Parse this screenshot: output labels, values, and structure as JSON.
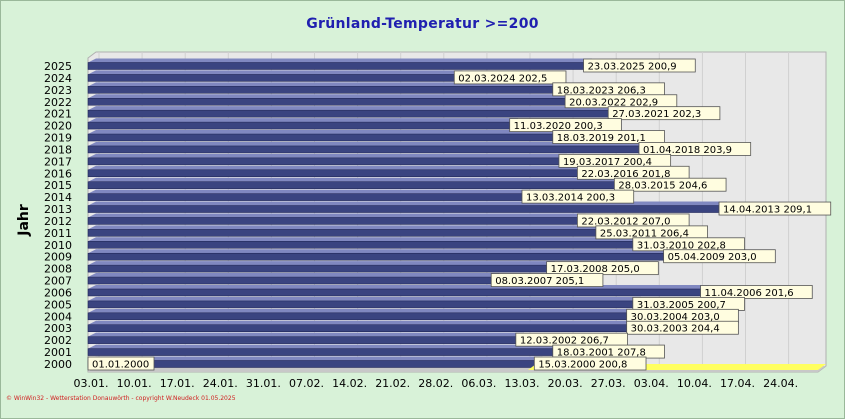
{
  "title": "Grünland-Temperatur  >=200",
  "ylabel": "Jahr",
  "credit": "© WinWin32 - Wetterstation Donauwörth - copyright W.Neudeck 01.05.2025",
  "colors": {
    "bar": "#3a4480",
    "barTop": "#8088c0",
    "labelBg": "#fffde0",
    "yellow": "#ffff60"
  },
  "chart_data": {
    "type": "bar",
    "orientation": "horizontal",
    "title": "Grünland-Temperatur  >=200",
    "ylabel": "Jahr",
    "x_ticks": [
      "03.01.",
      "10.01.",
      "17.01.",
      "24.01.",
      "31.01.",
      "07.02.",
      "14.02.",
      "21.02.",
      "28.02.",
      "06.03.",
      "13.03.",
      "20.03.",
      "27.03.",
      "03.04.",
      "10.04.",
      "17.04.",
      "24.04."
    ],
    "series": [
      {
        "year": "2025",
        "date": "23.03.2025",
        "value": "200,9"
      },
      {
        "year": "2024",
        "date": "02.03.2024",
        "value": "202,5"
      },
      {
        "year": "2023",
        "date": "18.03.2023",
        "value": "206,3"
      },
      {
        "year": "2022",
        "date": "20.03.2022",
        "value": "202,9"
      },
      {
        "year": "2021",
        "date": "27.03.2021",
        "value": "202,3"
      },
      {
        "year": "2020",
        "date": "11.03.2020",
        "value": "200,3"
      },
      {
        "year": "2019",
        "date": "18.03.2019",
        "value": "201,1"
      },
      {
        "year": "2018",
        "date": "01.04.2018",
        "value": "203,9"
      },
      {
        "year": "2017",
        "date": "19.03.2017",
        "value": "200,4"
      },
      {
        "year": "2016",
        "date": "22.03.2016",
        "value": "201,8"
      },
      {
        "year": "2015",
        "date": "28.03.2015",
        "value": "204,6"
      },
      {
        "year": "2014",
        "date": "13.03.2014",
        "value": "200,3"
      },
      {
        "year": "2013",
        "date": "14.04.2013",
        "value": "209,1"
      },
      {
        "year": "2012",
        "date": "22.03.2012",
        "value": "207,0"
      },
      {
        "year": "2011",
        "date": "25.03.2011",
        "value": "206,4"
      },
      {
        "year": "2010",
        "date": "31.03.2010",
        "value": "202,8"
      },
      {
        "year": "2009",
        "date": "05.04.2009",
        "value": "203,0"
      },
      {
        "year": "2008",
        "date": "17.03.2008",
        "value": "205,0"
      },
      {
        "year": "2007",
        "date": "08.03.2007",
        "value": "205,1"
      },
      {
        "year": "2006",
        "date": "11.04.2006",
        "value": "201,6"
      },
      {
        "year": "2005",
        "date": "31.03.2005",
        "value": "200,7"
      },
      {
        "year": "2004",
        "date": "30.03.2004",
        "value": "203,0"
      },
      {
        "year": "2003",
        "date": "30.03.2003",
        "value": "204,4"
      },
      {
        "year": "2002",
        "date": "12.03.2002",
        "value": "206,7"
      },
      {
        "year": "2001",
        "date": "18.03.2001",
        "value": "207,8"
      },
      {
        "year": "2000",
        "date": "15.03.2000",
        "value": "200,8"
      }
    ],
    "baseline_label": "01.01.2000",
    "grid": true
  }
}
